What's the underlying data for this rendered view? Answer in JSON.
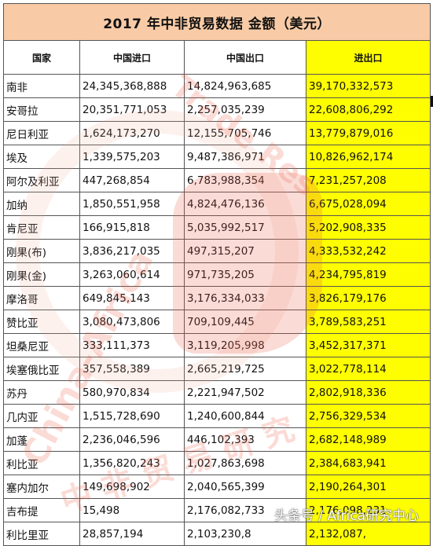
{
  "table": {
    "title": "2017 年中非贸易数据   金额（美元）",
    "headers": [
      "国家",
      "中国进口",
      "中国出口",
      "进出口"
    ],
    "rows": [
      [
        "南非",
        "24,345,368,888",
        "14,824,963,685",
        "39,170,332,573"
      ],
      [
        "安哥拉",
        "20,351,771,053",
        "2,257,035,239",
        "22,608,806,292"
      ],
      [
        "尼日利亚",
        "1,624,173,270",
        "12,155,705,746",
        "13,779,879,016"
      ],
      [
        "埃及",
        "1,339,575,203",
        "9,487,386,971",
        "10,826,962,174"
      ],
      [
        "阿尔及利亚",
        "447,268,854",
        "6,783,988,354",
        "7,231,257,208"
      ],
      [
        "加纳",
        "1,850,551,958",
        "4,824,476,136",
        "6,675,028,094"
      ],
      [
        "肯尼亚",
        "166,915,818",
        "5,035,992,517",
        "5,202,908,335"
      ],
      [
        "刚果(布)",
        "3,836,217,035",
        "497,315,207",
        "4,333,532,242"
      ],
      [
        "刚果(金)",
        "3,263,060,614",
        "971,735,205",
        "4,234,795,819"
      ],
      [
        "摩洛哥",
        "649,845,143",
        "3,176,334,033",
        "3,826,179,176"
      ],
      [
        "赞比亚",
        "3,080,473,806",
        "709,109,445",
        "3,789,583,251"
      ],
      [
        "坦桑尼亚",
        "333,111,373",
        "3,119,205,998",
        "3,452,317,371"
      ],
      [
        "埃塞俄比亚",
        "357,558,389",
        "2,665,219,725",
        "3,022,778,114"
      ],
      [
        "苏丹",
        "580,970,834",
        "2,221,947,502",
        "2,802,918,336"
      ],
      [
        "几内亚",
        "1,515,728,690",
        "1,240,600,844",
        "2,756,329,534"
      ],
      [
        "加蓬",
        "2,236,046,596",
        "446,102,393",
        "2,682,148,989"
      ],
      [
        "利比亚",
        "1,356,820,243",
        "1,027,863,698",
        "2,384,683,941"
      ],
      [
        "塞内加尔",
        "149,698,902",
        "2,040,565,399",
        "2,190,264,301"
      ],
      [
        "吉布提",
        "15,498",
        "2,176,082,733",
        "2,176,098,231"
      ],
      [
        "利比里亚",
        "28,857,194",
        "2,103,230,8",
        "2,132,087,"
      ]
    ]
  },
  "watermark": {
    "text_left": "China-Africa",
    "text_right": "Trade Res",
    "text_bottom": "中 非 贸 易 研 究"
  },
  "footer": {
    "caption": "头条号 / Africa研究中心"
  },
  "colors": {
    "title_bg": "#f8cba6",
    "highlight": "#fefe00",
    "watermark": "#eb5a46"
  }
}
